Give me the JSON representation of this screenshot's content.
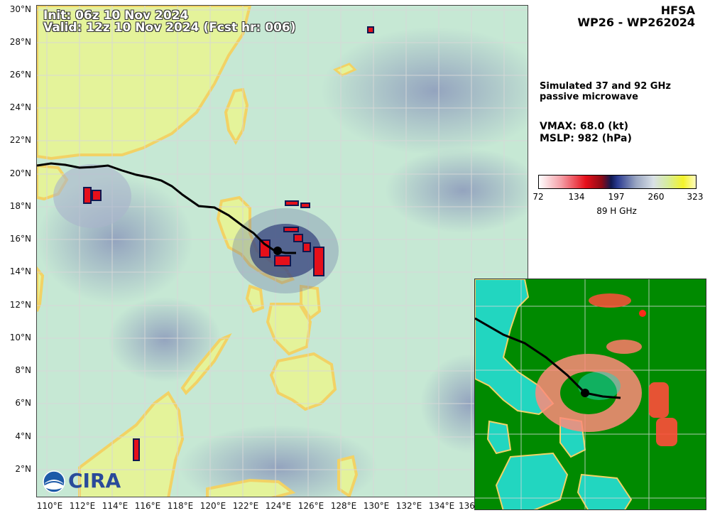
{
  "header": {
    "init": "Init:   06z 10 Nov 2024",
    "valid": "Valid: 12z 10 Nov 2024 (Fcst hr: 006)"
  },
  "title": {
    "model": "HFSA",
    "storm": "WP26 - WP262024"
  },
  "description": "Simulated 37 and 92 GHz passive microwave",
  "stats": {
    "vmax": "VMAX:  68.0 (kt)",
    "mslp": "MSLP:  982 (hPa)"
  },
  "colorbar": {
    "ticks": [
      "72",
      "134",
      "197",
      "260",
      "323"
    ],
    "label": "89 H GHz"
  },
  "lat_labels": [
    "30°N",
    "28°N",
    "26°N",
    "24°N",
    "22°N",
    "20°N",
    "18°N",
    "16°N",
    "14°N",
    "12°N",
    "10°N",
    "8°N",
    "6°N",
    "4°N",
    "2°N"
  ],
  "lon_labels": [
    "110°E",
    "112°E",
    "114°E",
    "116°E",
    "118°E",
    "120°E",
    "122°E",
    "124°E",
    "126°E",
    "128°E",
    "130°E",
    "132°E",
    "134°E",
    "136"
  ],
  "logo": {
    "text": "CIRA"
  },
  "colors": {
    "land": "#dff08a",
    "coast": "#f2d265",
    "ocean": "#c4e8d2",
    "cloud": "#9aa6c2",
    "convection_red": "#e60f1a",
    "convection_dark": "#101850",
    "inset_ocean": "#008a00",
    "inset_land": "#22d6c0",
    "inset_rain": "#ff7a6a",
    "grid": "#d8d8d8"
  }
}
